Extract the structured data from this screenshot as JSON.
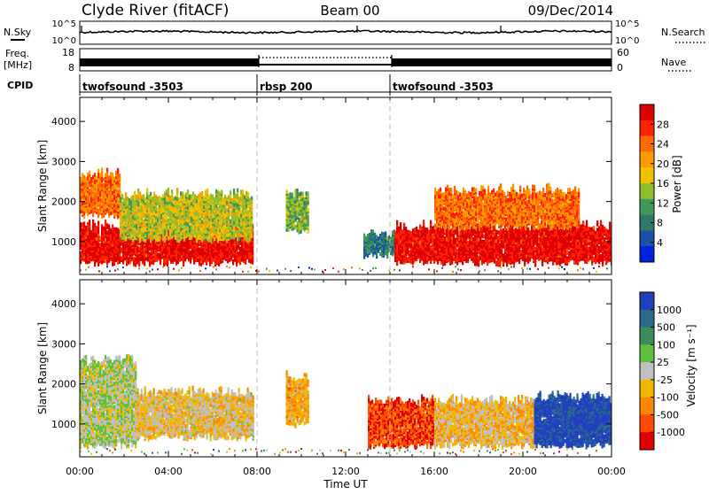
{
  "header": {
    "station": "Clyde River (fitACF)",
    "beam": "Beam 00",
    "date": "09/Dec/2014"
  },
  "noise_panel": {
    "left_label": "N.Sky",
    "right_label": "N.Search",
    "left_ticks": [
      "10^5",
      "10^0"
    ],
    "right_ticks": [
      "10^5",
      "10^0"
    ]
  },
  "freq_panel": {
    "left_label_line1": "Freq.",
    "left_label_line2": "[MHz]",
    "right_label": "Nave",
    "left_ticks": [
      "18",
      "8"
    ],
    "right_ticks": [
      "60",
      "0"
    ]
  },
  "cpid_panel": {
    "label": "CPID",
    "segments": [
      {
        "name": "twofsound -3503",
        "start": 0,
        "end": 8
      },
      {
        "name": "rbsp 200",
        "start": 8,
        "end": 14
      },
      {
        "name": "twofsound -3503",
        "start": 14,
        "end": 24
      }
    ]
  },
  "power_panel": {
    "ylabel": "Slant Range [km]",
    "colorbar_label": "Power [dB]",
    "colorbar_ticks": [
      "28",
      "24",
      "20",
      "16",
      "12",
      "8",
      "4"
    ],
    "colorbar_colors": [
      "#dd0000",
      "#ff2200",
      "#ff6a00",
      "#ff9900",
      "#f2c000",
      "#8fbf2a",
      "#3f9a5a",
      "#2e7a6a",
      "#1a50a8",
      "#0020e0"
    ]
  },
  "velocity_panel": {
    "ylabel": "Slant Range [km]",
    "colorbar_label": "Velocity [m s⁻¹]",
    "colorbar_ticks": [
      "1000",
      "500",
      "100",
      "25",
      "-25",
      "-100",
      "-500",
      "-1000"
    ],
    "colorbar_colors": [
      "#2040c0",
      "#2a6a8a",
      "#3a8a5a",
      "#5fc03a",
      "#c0c0c0",
      "#f2b800",
      "#ff8800",
      "#ff4a00",
      "#e00000"
    ]
  },
  "xaxis": {
    "label": "Time UT",
    "ticks": [
      "00:00",
      "04:00",
      "08:00",
      "12:00",
      "16:00",
      "20:00",
      "00:00"
    ]
  },
  "chart_data": {
    "type": "heatmap",
    "title": "Clyde River (fitACF)   Beam 00   09/Dec/2014",
    "xlabel": "Time UT",
    "ylabel": "Slant Range [km]",
    "xlim": [
      0,
      24
    ],
    "ylim": [
      180,
      4600
    ],
    "yticks": [
      1000,
      2000,
      3000,
      4000
    ],
    "mode_change_hours": [
      8,
      14
    ],
    "panels": [
      {
        "quantity": "Power [dB]",
        "clim": [
          0,
          30
        ],
        "regions": [
          {
            "t0": 0,
            "t1": 7.8,
            "r0": 500,
            "r1": 1400,
            "value": 28
          },
          {
            "t0": 0,
            "t1": 1.8,
            "r0": 1700,
            "r1": 2700,
            "value": 22
          },
          {
            "t0": 1.8,
            "t1": 7.8,
            "r0": 1100,
            "r1": 2200,
            "value": 15
          },
          {
            "t0": 9.3,
            "t1": 10.3,
            "r0": 1300,
            "r1": 2200,
            "value": 12
          },
          {
            "t0": 12.8,
            "t1": 14.2,
            "r0": 700,
            "r1": 1200,
            "value": 8
          },
          {
            "t0": 14.2,
            "t1": 24,
            "r0": 500,
            "r1": 1400,
            "value": 28
          },
          {
            "t0": 16.0,
            "t1": 22.5,
            "r0": 1400,
            "r1": 2300,
            "value": 22
          }
        ]
      },
      {
        "quantity": "Velocity [m s⁻¹]",
        "clim": [
          -1000,
          1000
        ],
        "regions": [
          {
            "t0": 0,
            "t1": 2.5,
            "r0": 500,
            "r1": 2600,
            "value": 50
          },
          {
            "t0": 2.5,
            "t1": 7.8,
            "r0": 700,
            "r1": 1800,
            "value": -150
          },
          {
            "t0": 9.3,
            "t1": 10.3,
            "r0": 1000,
            "r1": 2200,
            "value": -300
          },
          {
            "t0": 13.0,
            "t1": 16.0,
            "r0": 500,
            "r1": 1600,
            "value": -700
          },
          {
            "t0": 16.0,
            "t1": 20.5,
            "r0": 500,
            "r1": 1600,
            "value": -200
          },
          {
            "t0": 20.5,
            "t1": 24,
            "r0": 500,
            "r1": 1700,
            "value": 900
          }
        ]
      }
    ]
  }
}
